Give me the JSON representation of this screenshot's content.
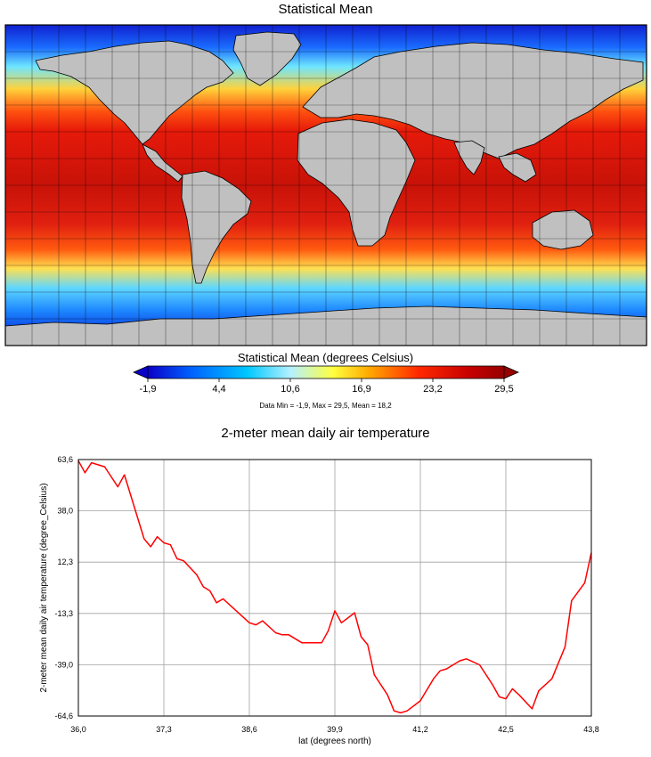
{
  "map": {
    "title": "Statistical Mean",
    "colorbar": {
      "title": "Statistical Mean (degrees Celsius)",
      "ticks": [
        "-1,9",
        "4,4",
        "10,6",
        "16,9",
        "23,2",
        "29,5"
      ],
      "stats": "Data Min = -1,9, Max = 29,5, Mean = 18,2",
      "colors": [
        "#0a00c8",
        "#0060ff",
        "#00c8ff",
        "#b4f0ff",
        "#ffff40",
        "#ffaa00",
        "#ff2800",
        "#c80000",
        "#960000"
      ]
    },
    "land_color": "#c0c0c0"
  },
  "chart_data": {
    "type": "line",
    "title": "2-meter mean daily air temperature",
    "xlabel": "lat (degrees north)",
    "ylabel": "2-meter mean daily air temperature (degree_Celsius)",
    "xlim": [
      36.0,
      43.8
    ],
    "ylim": [
      -64.6,
      63.6
    ],
    "x_ticks": [
      "36,0",
      "37,3",
      "38,6",
      "39,9",
      "41,2",
      "42,5",
      "43,8"
    ],
    "y_ticks": [
      "63,6",
      "38,0",
      "12,3",
      "-13,3",
      "-39,0",
      "-64,6"
    ],
    "grid": true,
    "series": [
      {
        "color": "#ff0000",
        "x": [
          36.0,
          36.1,
          36.2,
          36.4,
          36.6,
          36.7,
          37.0,
          37.1,
          37.2,
          37.3,
          37.4,
          37.5,
          37.6,
          37.8,
          37.9,
          38.0,
          38.1,
          38.2,
          38.4,
          38.5,
          38.6,
          38.7,
          38.8,
          39.0,
          39.1,
          39.2,
          39.4,
          39.5,
          39.7,
          39.8,
          39.9,
          40.0,
          40.2,
          40.3,
          40.4,
          40.5,
          40.7,
          40.8,
          40.9,
          41.0,
          41.2,
          41.4,
          41.5,
          41.6,
          41.8,
          41.9,
          42.1,
          42.3,
          42.4,
          42.5,
          42.6,
          42.7,
          42.9,
          43.0,
          43.2,
          43.4,
          43.5,
          43.7,
          43.8
        ],
        "y": [
          63.0,
          57.0,
          62.0,
          60.0,
          50.0,
          56.0,
          24.0,
          20.0,
          25.0,
          22.0,
          21.0,
          14.0,
          13.0,
          6.0,
          0.0,
          -2.0,
          -8.0,
          -6.0,
          -12.0,
          -15.0,
          -18.0,
          -19.0,
          -17.0,
          -23.0,
          -24.0,
          -24.0,
          -28.0,
          -28.0,
          -28.0,
          -22.0,
          -12.0,
          -18.0,
          -13.0,
          -25.0,
          -29.0,
          -44.0,
          -54.0,
          -62.0,
          -63.0,
          -62.0,
          -57.0,
          -46.0,
          -42.0,
          -41.0,
          -37.0,
          -36.0,
          -39.0,
          -49.0,
          -55.0,
          -56.0,
          -51.0,
          -54.0,
          -61.0,
          -52.0,
          -46.0,
          -30.0,
          -7.0,
          2.0,
          17.0
        ]
      }
    ]
  }
}
